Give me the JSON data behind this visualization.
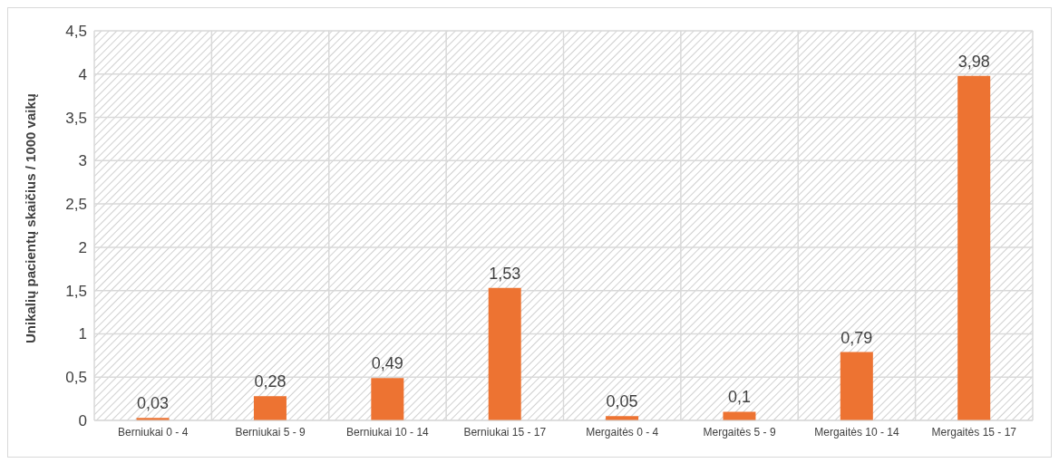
{
  "chart_data": {
    "type": "bar",
    "ylabel": "Unikalių pacientų skaičius / 1000 vaikų",
    "categories": [
      "Berniukai  0 - 4",
      "Berniukai  5 - 9",
      "Berniukai  10 - 14",
      "Berniukai  15 - 17",
      "Mergaitės 0 - 4",
      "Mergaitės 5 - 9",
      "Mergaitės 10 - 14",
      "Mergaitės 15 - 17"
    ],
    "values": [
      0.03,
      0.28,
      0.49,
      1.53,
      0.05,
      0.1,
      0.79,
      3.98
    ],
    "value_labels": [
      "0,03",
      "0,28",
      "0,49",
      "1,53",
      "0,05",
      "0,1",
      "0,79",
      "3,98"
    ],
    "color": "#ed7332",
    "ylim": [
      0,
      4.5
    ],
    "yticks": [
      0,
      {
        "value": 0.5,
        "label": "0,5"
      },
      1,
      {
        "value": 1.5,
        "label": "1,5"
      },
      2,
      {
        "value": 2.5,
        "label": "2,5"
      },
      3,
      {
        "value": 3.5,
        "label": "3,5"
      },
      4,
      {
        "value": 4.5,
        "label": "4,5"
      }
    ],
    "grid": true
  }
}
